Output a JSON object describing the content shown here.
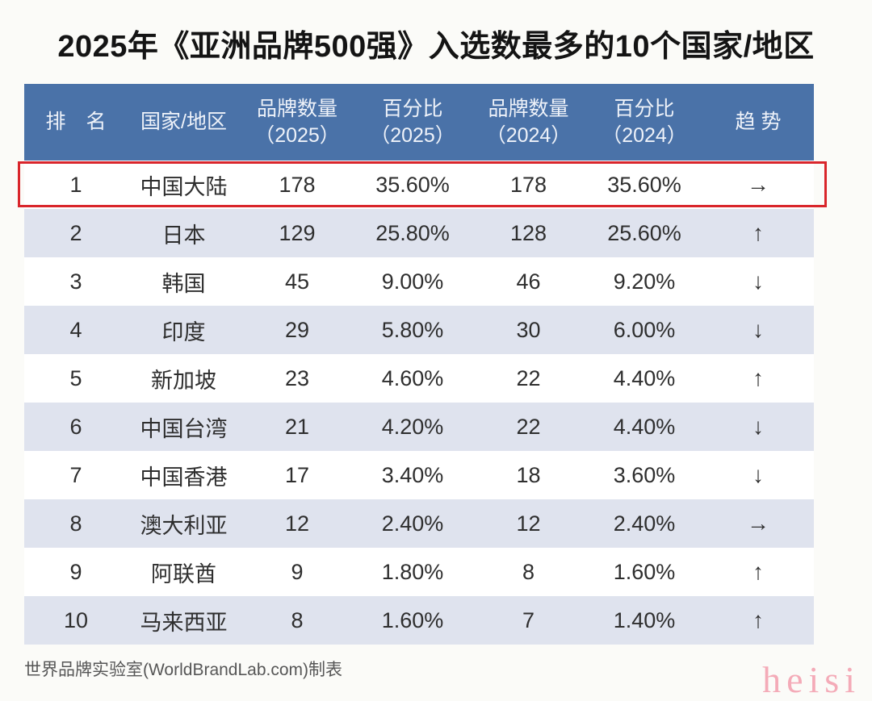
{
  "title": "2025年《亚洲品牌500强》入选数最多的10个国家/地区",
  "colors": {
    "header_bg": "#4a72a8",
    "header_text": "#eef2f9",
    "row_alt_bg": "#dfe3ee",
    "highlight_border": "#d9252b",
    "body_text": "#2e2e2e",
    "source_text": "#565656",
    "watermark_pink": "#f4abb8"
  },
  "header_columns": [
    {
      "line1": "排　名",
      "line2": ""
    },
    {
      "line1": "国家/地区",
      "line2": ""
    },
    {
      "line1": "品牌数量",
      "line2": "（2025）"
    },
    {
      "line1": "百分比",
      "line2": "（2025）"
    },
    {
      "line1": "品牌数量",
      "line2": "（2024）"
    },
    {
      "line1": "百分比",
      "line2": "（2024）"
    },
    {
      "line1": "趋 势",
      "line2": ""
    }
  ],
  "chart_data": {
    "type": "table",
    "title": "2025年《亚洲品牌500强》入选数最多的10个国家/地区",
    "columns": [
      "排名",
      "国家/地区",
      "品牌数量（2025）",
      "百分比（2025）",
      "品牌数量（2024）",
      "百分比（2024）",
      "趋势"
    ],
    "rows": [
      {
        "rank": "1",
        "country": "中国大陆",
        "brands_2025": "178",
        "pct_2025": "35.60%",
        "brands_2024": "178",
        "pct_2024": "35.60%",
        "trend": "→",
        "trend_name": "flat",
        "highlighted": true
      },
      {
        "rank": "2",
        "country": "日本",
        "brands_2025": "129",
        "pct_2025": "25.80%",
        "brands_2024": "128",
        "pct_2024": "25.60%",
        "trend": "↑",
        "trend_name": "up",
        "highlighted": false
      },
      {
        "rank": "3",
        "country": "韩国",
        "brands_2025": "45",
        "pct_2025": "9.00%",
        "brands_2024": "46",
        "pct_2024": "9.20%",
        "trend": "↓",
        "trend_name": "down",
        "highlighted": false
      },
      {
        "rank": "4",
        "country": "印度",
        "brands_2025": "29",
        "pct_2025": "5.80%",
        "brands_2024": "30",
        "pct_2024": "6.00%",
        "trend": "↓",
        "trend_name": "down",
        "highlighted": false
      },
      {
        "rank": "5",
        "country": "新加坡",
        "brands_2025": "23",
        "pct_2025": "4.60%",
        "brands_2024": "22",
        "pct_2024": "4.40%",
        "trend": "↑",
        "trend_name": "up",
        "highlighted": false
      },
      {
        "rank": "6",
        "country": "中国台湾",
        "brands_2025": "21",
        "pct_2025": "4.20%",
        "brands_2024": "22",
        "pct_2024": "4.40%",
        "trend": "↓",
        "trend_name": "down",
        "highlighted": false
      },
      {
        "rank": "7",
        "country": "中国香港",
        "brands_2025": "17",
        "pct_2025": "3.40%",
        "brands_2024": "18",
        "pct_2024": "3.60%",
        "trend": "↓",
        "trend_name": "down",
        "highlighted": false
      },
      {
        "rank": "8",
        "country": "澳大利亚",
        "brands_2025": "12",
        "pct_2025": "2.40%",
        "brands_2024": "12",
        "pct_2024": "2.40%",
        "trend": "→",
        "trend_name": "flat",
        "highlighted": false
      },
      {
        "rank": "9",
        "country": "阿联酋",
        "brands_2025": "9",
        "pct_2025": "1.80%",
        "brands_2024": "8",
        "pct_2024": "1.60%",
        "trend": "↑",
        "trend_name": "up",
        "highlighted": false
      },
      {
        "rank": "10",
        "country": "马来西亚",
        "brands_2025": "8",
        "pct_2025": "1.60%",
        "brands_2024": "7",
        "pct_2024": "1.40%",
        "trend": "↑",
        "trend_name": "up",
        "highlighted": false
      }
    ]
  },
  "footer": "世界品牌实验室(WorldBrandLab.com)制表",
  "watermark": "heisi"
}
